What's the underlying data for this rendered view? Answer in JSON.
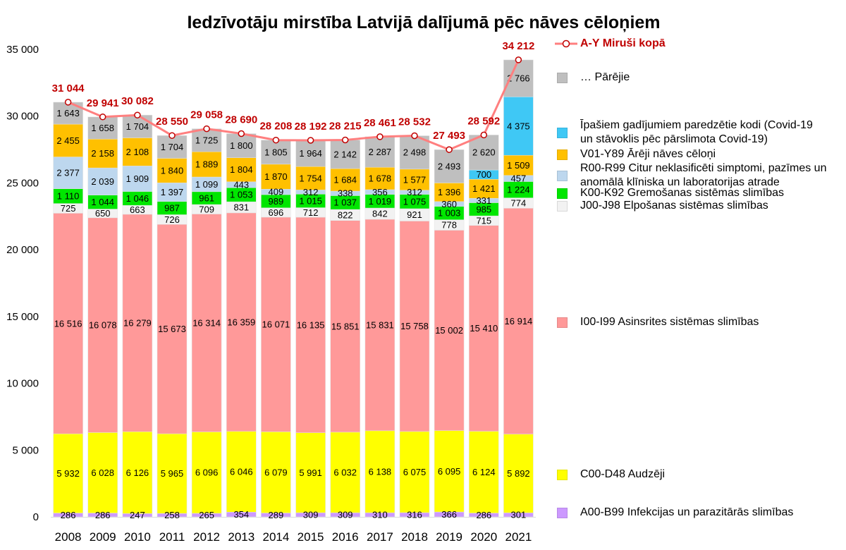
{
  "chart_data": {
    "type": "bar",
    "stacked": true,
    "title": "Iedzīvotāju mirstība Latvijā dalījumā pēc nāves cēloņiem",
    "categories": [
      "2008",
      "2009",
      "2010",
      "2011",
      "2012",
      "2013",
      "2014",
      "2015",
      "2016",
      "2017",
      "2018",
      "2019",
      "2020",
      "2021"
    ],
    "ylim": [
      0,
      35000
    ],
    "yticks": [
      0,
      5000,
      10000,
      15000,
      20000,
      25000,
      30000,
      35000
    ],
    "grid": false,
    "legend": "right",
    "series": [
      {
        "name": "A00-B99 Infekcijas un parazitārās slimības",
        "color": "#CC99FF",
        "values": [
          286,
          286,
          247,
          258,
          265,
          354,
          289,
          309,
          309,
          310,
          316,
          366,
          286,
          301
        ]
      },
      {
        "name": "C00-D48 Audzēji",
        "color": "#FFFF00",
        "values": [
          5932,
          6028,
          6126,
          5965,
          6096,
          6046,
          6079,
          5991,
          6032,
          6138,
          6075,
          6095,
          6124,
          5892
        ]
      },
      {
        "name": "I00-I99 Asinsrites sistēmas slimības",
        "color": "#FF9999",
        "values": [
          16516,
          16078,
          16279,
          15673,
          16314,
          16359,
          16071,
          16135,
          15851,
          15831,
          15758,
          15002,
          15410,
          16914
        ]
      },
      {
        "name": "J00-J98 Elpošanas sistēmas slimības",
        "color": "#F2F2F2",
        "values": [
          725,
          650,
          663,
          726,
          709,
          831,
          696,
          712,
          822,
          842,
          921,
          778,
          715,
          774
        ]
      },
      {
        "name": "K00-K92 Gremošanas sistēmas slimības",
        "color": "#00E600",
        "values": [
          1110,
          1044,
          1046,
          987,
          961,
          1053,
          989,
          1015,
          1037,
          1019,
          1075,
          1003,
          985,
          1224
        ]
      },
      {
        "name": "R00-R99 Citur neklasificēti simptomi, pazīmes un\nanomālā klīniska un laboratorijas atrade",
        "color": "#BDD7EE",
        "values": [
          2377,
          2039,
          1909,
          1397,
          1099,
          443,
          409,
          312,
          338,
          356,
          312,
          360,
          331,
          457
        ]
      },
      {
        "name": "V01-Y89 Ārēji nāves cēloņi",
        "color": "#FFC000",
        "values": [
          2455,
          2158,
          2108,
          1840,
          1889,
          1804,
          1870,
          1754,
          1684,
          1678,
          1577,
          1396,
          1421,
          1509
        ]
      },
      {
        "name": "Īpašiem gadījumiem paredzētie kodi (Covid-19\nun stāvoklis pēc pārslimota Covid-19)",
        "color": "#3FC8F5",
        "values": [
          null,
          null,
          null,
          null,
          null,
          null,
          null,
          null,
          null,
          null,
          null,
          null,
          700,
          4375
        ]
      },
      {
        "name": "… Pārējie",
        "color": "#BFBFBF",
        "values": [
          1643,
          1658,
          1704,
          1704,
          1725,
          1800,
          1805,
          1964,
          2142,
          2287,
          2498,
          2493,
          2620,
          2766
        ]
      }
    ],
    "line": {
      "type": "line",
      "name": "A-Y Miruši kopā",
      "color": "#FF7F7F",
      "marker_color": "#C00000",
      "label_color": "#C00000",
      "values": [
        31044,
        29941,
        30082,
        28550,
        29058,
        28690,
        28208,
        28192,
        28215,
        28461,
        28532,
        27493,
        28592,
        34212
      ]
    }
  }
}
